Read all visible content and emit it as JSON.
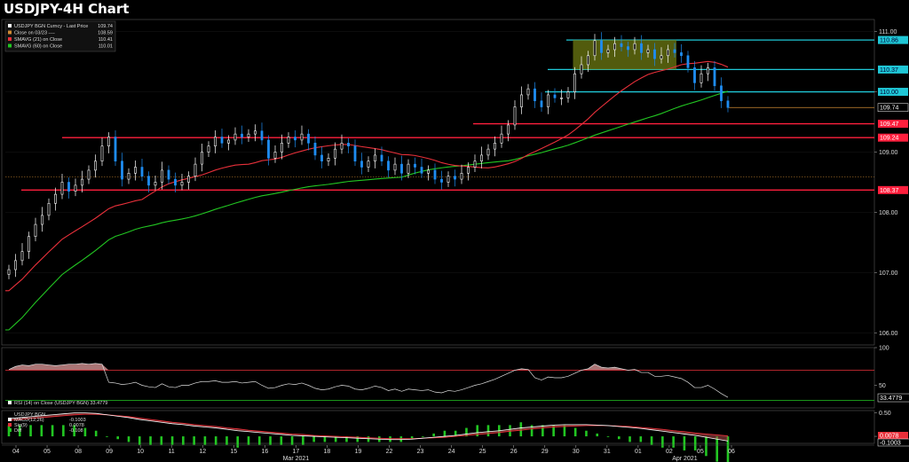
{
  "page": {
    "title": "USDJPY-4H Chart"
  },
  "colors": {
    "background": "#000000",
    "candle_up": "#ffffff",
    "candle_down": "#1e8cf0",
    "sma21": "#e8303a",
    "sma60": "#22c622",
    "resistance_line": "#1fc7d6",
    "support_line": "#ff1f3d",
    "last_price_line": "#d08a33",
    "consolidation_box": "#6d7a12",
    "rsi_line": "#e0e0e0",
    "rsi_fill": "#c88a8a",
    "macd_line": "#ffffff",
    "signal_line": "#e8303a",
    "diff_bars": "#22c622"
  },
  "chart_data": [
    {
      "type": "candlestick",
      "panel": "price",
      "title": "USDJPY-4H Chart",
      "ylim": [
        105.8,
        111.2
      ],
      "yticks": [
        "106.00",
        "107.00",
        "108.00",
        "109.00",
        "110.00",
        "111.00"
      ],
      "xticks": [
        "04",
        "05",
        "08",
        "09",
        "10",
        "11",
        "12",
        "15",
        "16",
        "17",
        "18",
        "19",
        "22",
        "23",
        "24",
        "25",
        "26",
        "29",
        "30",
        "31",
        "01",
        "02",
        "05",
        "06"
      ],
      "month_labels": [
        {
          "label": "Mar 2021",
          "at_index": 9
        },
        {
          "label": "Apr 2021",
          "at_index": 21.5
        }
      ],
      "legend": [
        {
          "label": "USDJPY BGN Curncy - Last Price",
          "value": "109.74",
          "color": "#ffffff"
        },
        {
          "label": "Close on 03/23 ----",
          "value": "108.59",
          "color": "#d08a33"
        },
        {
          "label": "SMAVG (21)  on Close",
          "value": "110.41",
          "color": "#e8303a"
        },
        {
          "label": "SMAVG (60)  on Close",
          "value": "110.01",
          "color": "#22c622"
        }
      ],
      "candles_close": [
        107.05,
        107.2,
        107.35,
        107.6,
        107.8,
        107.95,
        108.15,
        108.3,
        108.5,
        108.35,
        108.45,
        108.55,
        108.7,
        108.85,
        109.1,
        109.25,
        108.85,
        108.55,
        108.65,
        108.75,
        108.6,
        108.45,
        108.5,
        108.7,
        108.55,
        108.45,
        108.5,
        108.6,
        108.8,
        109.0,
        109.1,
        109.25,
        109.15,
        109.2,
        109.3,
        109.25,
        109.3,
        109.35,
        109.2,
        108.9,
        109.0,
        109.15,
        109.25,
        109.2,
        109.3,
        109.15,
        108.95,
        108.85,
        108.9,
        109.05,
        109.15,
        109.1,
        108.85,
        108.75,
        108.85,
        108.95,
        108.85,
        108.7,
        108.8,
        108.65,
        108.8,
        108.75,
        108.65,
        108.7,
        108.55,
        108.5,
        108.6,
        108.55,
        108.65,
        108.75,
        108.85,
        108.95,
        109.05,
        109.15,
        109.3,
        109.45,
        109.75,
        109.95,
        110.05,
        109.85,
        109.75,
        109.95,
        109.9,
        109.9,
        110.0,
        110.3,
        110.45,
        110.6,
        110.85,
        110.65,
        110.7,
        110.8,
        110.75,
        110.7,
        110.8,
        110.65,
        110.7,
        110.55,
        110.6,
        110.7,
        110.65,
        110.6,
        110.4,
        110.15,
        110.3,
        110.4,
        110.1,
        109.85,
        109.74
      ],
      "sma21_endpoints": {
        "start": 106.7,
        "end": 110.41
      },
      "sma60_endpoints": {
        "start": 106.05,
        "end": 110.01
      },
      "horizontal_lines": [
        {
          "kind": "resistance",
          "value": 110.86,
          "label": "110.86"
        },
        {
          "kind": "resistance",
          "value": 110.37,
          "label": "110.37"
        },
        {
          "kind": "resistance",
          "value": 110.0,
          "label": "110.00"
        },
        {
          "kind": "support",
          "value": 109.47,
          "label": "109.47"
        },
        {
          "kind": "support",
          "value": 109.24,
          "label": "109.24"
        },
        {
          "kind": "support",
          "value": 108.37,
          "label": "108.37"
        }
      ],
      "last_price": {
        "value": 109.74,
        "label": "109.74"
      },
      "reference_close": 108.59,
      "consolidation_zone": {
        "from_index": 85,
        "to_index": 100,
        "low": 110.37,
        "high": 110.86
      }
    },
    {
      "type": "line",
      "panel": "rsi",
      "legend": "RSI (14)  on Close (USDJPY BGN) 33.4779",
      "ylim": [
        20,
        100
      ],
      "yticks": [
        "100",
        "50"
      ],
      "overbought": 70,
      "oversold": 30,
      "last_value_label": "33.4779",
      "values": [
        71,
        75,
        77,
        76,
        78,
        78,
        77,
        76,
        77,
        78,
        78,
        79,
        78,
        79,
        78,
        54,
        53,
        51,
        52,
        54,
        50,
        48,
        47,
        52,
        48,
        47,
        50,
        50,
        53,
        55,
        55,
        56,
        54,
        54,
        55,
        53,
        54,
        55,
        50,
        46,
        47,
        50,
        52,
        51,
        53,
        50,
        46,
        44,
        45,
        48,
        50,
        49,
        45,
        44,
        46,
        49,
        47,
        43,
        45,
        42,
        45,
        44,
        43,
        44,
        41,
        40,
        43,
        42,
        44,
        47,
        50,
        52,
        55,
        58,
        62,
        66,
        70,
        72,
        71,
        60,
        57,
        61,
        60,
        60,
        62,
        66,
        70,
        72,
        78,
        74,
        73,
        74,
        72,
        70,
        71,
        67,
        67,
        62,
        62,
        63,
        61,
        59,
        54,
        47,
        47,
        50,
        45,
        39,
        34
      ]
    },
    {
      "type": "line",
      "panel": "macd",
      "legend_title": "USDJPY BGN",
      "legend": [
        {
          "label": "MACD(12,26)",
          "value": "-0.1003",
          "color": "#ffffff"
        },
        {
          "label": "Sig(9)",
          "value": "0.0078",
          "color": "#e8303a"
        },
        {
          "label": "Diff",
          "value": "-0.108",
          "color": "#22c622"
        }
      ],
      "ylim": [
        -0.15,
        0.55
      ],
      "yticks": [
        "0.50",
        "0.00"
      ],
      "last_value_labels": [
        "0.0078",
        "-0.1003"
      ],
      "macd_values": [
        0.38,
        0.4,
        0.42,
        0.44,
        0.46,
        0.48,
        0.5,
        0.5,
        0.49,
        0.46,
        0.43,
        0.4,
        0.36,
        0.33,
        0.3,
        0.27,
        0.25,
        0.22,
        0.2,
        0.18,
        0.15,
        0.12,
        0.1,
        0.08,
        0.06,
        0.04,
        0.02,
        0.01,
        0.0,
        -0.01,
        -0.02,
        -0.03,
        -0.04,
        -0.05,
        -0.06,
        -0.07,
        -0.07,
        -0.06,
        -0.04,
        -0.02,
        0.0,
        0.02,
        0.05,
        0.08,
        0.1,
        0.12,
        0.15,
        0.18,
        0.2,
        0.22,
        0.24,
        0.25,
        0.25,
        0.25,
        0.24,
        0.23,
        0.21,
        0.19,
        0.17,
        0.14,
        0.11,
        0.08,
        0.05,
        0.02,
        -0.02,
        -0.06,
        -0.1
      ],
      "signal_values": [
        0.34,
        0.36,
        0.38,
        0.4,
        0.42,
        0.44,
        0.46,
        0.47,
        0.47,
        0.46,
        0.44,
        0.42,
        0.39,
        0.36,
        0.33,
        0.3,
        0.28,
        0.25,
        0.23,
        0.21,
        0.18,
        0.16,
        0.13,
        0.11,
        0.09,
        0.07,
        0.05,
        0.04,
        0.02,
        0.01,
        0.0,
        -0.01,
        -0.02,
        -0.03,
        -0.04,
        -0.05,
        -0.05,
        -0.05,
        -0.04,
        -0.03,
        -0.02,
        0.0,
        0.02,
        0.04,
        0.06,
        0.08,
        0.11,
        0.13,
        0.16,
        0.18,
        0.2,
        0.21,
        0.22,
        0.23,
        0.23,
        0.23,
        0.22,
        0.21,
        0.19,
        0.17,
        0.15,
        0.12,
        0.1,
        0.07,
        0.05,
        0.03,
        0.01
      ]
    }
  ]
}
